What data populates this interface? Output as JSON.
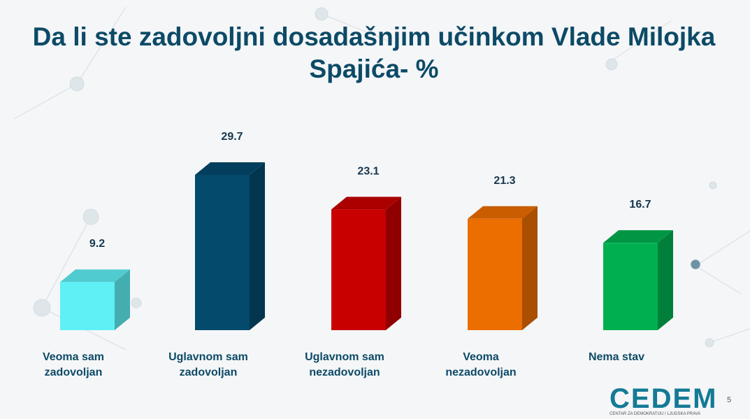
{
  "chart_data": {
    "type": "bar3d",
    "title": "Da li ste zadovoljni dosadašnjim učinkom Vlade Milojka Spajića- %",
    "categories": [
      "Veoma sam zadovoljan",
      "Uglavnom sam zadovoljan",
      "Uglavnom sam nezadovoljan",
      "Veoma nezadovoljan",
      "Nema stav"
    ],
    "values": [
      9.2,
      29.7,
      23.1,
      21.3,
      16.7
    ],
    "colors": [
      "#5ef0f5",
      "#034a6d",
      "#c80000",
      "#ec6d00",
      "#00b050"
    ]
  },
  "logo": {
    "name": "CEDEM",
    "tagline": "CENTAR ZA DEMOKRATIJU I LJUDSKA PRAVA"
  },
  "page_number": "5"
}
